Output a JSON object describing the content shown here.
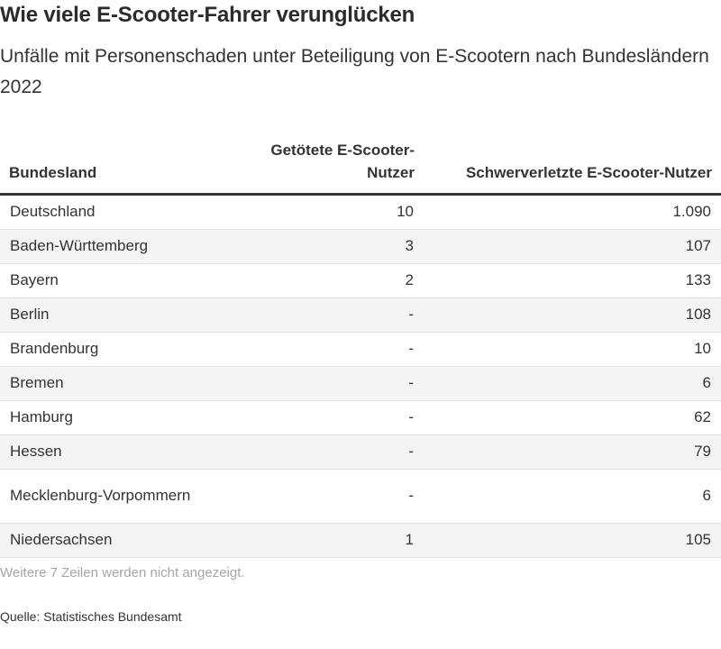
{
  "chart_data": {
    "type": "table",
    "title": "Wie viele E-Scooter-Fahrer verunglücken",
    "subtitle": "Unfälle mit Personenschaden unter Beteiligung von E-Scootern nach Bundesländern 2022",
    "columns": [
      "Bundesland",
      "Getötete E-Scooter-Nutzer",
      "Schwerverletzte E-Scooter-Nutzer"
    ],
    "rows": [
      {
        "bundesland": "Deutschland",
        "getoetete": "10",
        "schwerverletzte": "1.090"
      },
      {
        "bundesland": "Baden-Württemberg",
        "getoetete": "3",
        "schwerverletzte": "107"
      },
      {
        "bundesland": "Bayern",
        "getoetete": "2",
        "schwerverletzte": "133"
      },
      {
        "bundesland": "Berlin",
        "getoetete": "-",
        "schwerverletzte": "108"
      },
      {
        "bundesland": "Brandenburg",
        "getoetete": "-",
        "schwerverletzte": "10"
      },
      {
        "bundesland": "Bremen",
        "getoetete": "-",
        "schwerverletzte": "6"
      },
      {
        "bundesland": "Hamburg",
        "getoetete": "-",
        "schwerverletzte": "62"
      },
      {
        "bundesland": "Hessen",
        "getoetete": "-",
        "schwerverletzte": "79"
      },
      {
        "bundesland": "Mecklenburg-Vorpommern",
        "getoetete": "-",
        "schwerverletzte": "6"
      },
      {
        "bundesland": "Niedersachsen",
        "getoetete": "1",
        "schwerverletzte": "105"
      }
    ],
    "note": "Weitere 7 Zeilen werden nicht angezeigt.",
    "source": "Quelle: Statistisches Bundesamt"
  }
}
